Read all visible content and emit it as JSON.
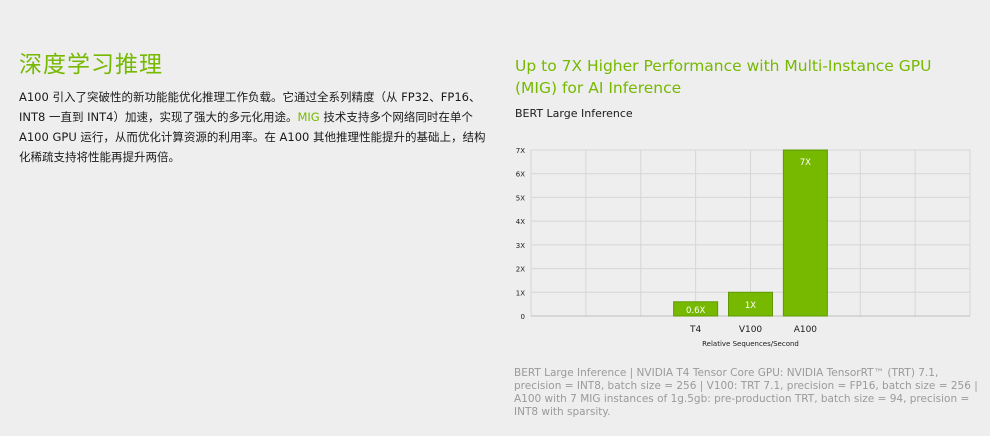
{
  "left": {
    "heading": "深度学习推理",
    "para_pre": "A100 引入了突破性的新功能能优化推理工作负载。它通过全系列精度（从 FP32、FP16、INT8 一直到 INT4）加速，实现了强大的多元化用途。",
    "para_mig": "MIG",
    "para_post": " 技术支持多个网络同时在单个 A100 GPU 运行，从而优化计算资源的利用率。在 A100 其他推理性能提升的基础上，结构化稀疏支持将性能再提升两倍。"
  },
  "right": {
    "title": "Up to 7X Higher Performance with Multi-Instance GPU (MIG) for AI Inference",
    "subtitle": "BERT Large Inference",
    "footnote": "BERT Large Inference | NVIDIA T4 Tensor Core GPU: NVIDIA TensorRT™ (TRT) 7.1, precision = INT8, batch size = 256 | V100: TRT 7.1, precision = FP16, batch size = 256 | A100 with 7 MIG instances of 1g.5gb: pre-production TRT, batch size = 94, precision = INT8 with sparsity."
  },
  "colors": {
    "accent": "#76b900",
    "bar_fill": "#76b900",
    "bar_stroke": "#5f9b00",
    "text": "#1a1a1a",
    "muted": "#9a9a9a"
  },
  "chart_data": {
    "type": "bar",
    "categories": [
      "T4",
      "V100",
      "A100"
    ],
    "values": [
      0.6,
      1,
      7
    ],
    "value_labels": [
      "0.6X",
      "1X",
      "7X"
    ],
    "y_ticks": [
      "0",
      "1X",
      "2X",
      "3X",
      "4X",
      "5X",
      "6X",
      "7X"
    ],
    "ylim": [
      0,
      7
    ],
    "xlabel": "Relative Sequences/Second",
    "ylabel": "",
    "grid": true,
    "legend": "none"
  }
}
